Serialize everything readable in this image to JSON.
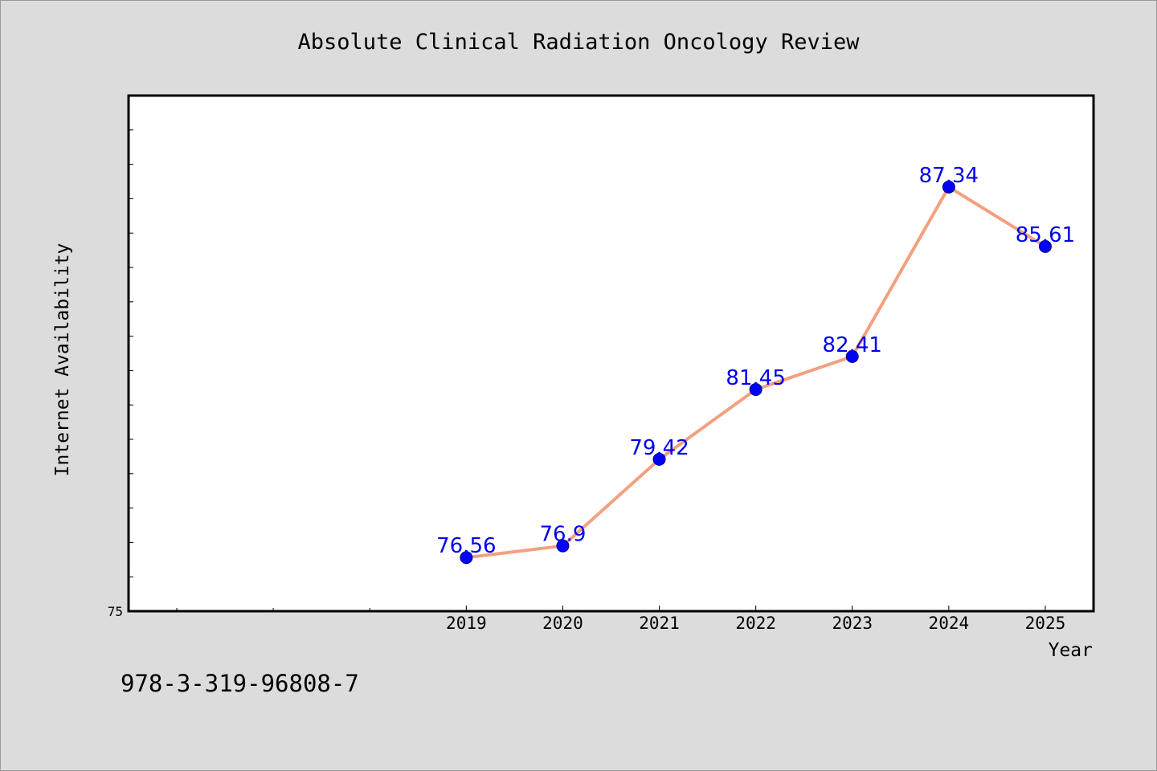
{
  "chart_data": {
    "type": "line",
    "title": "Absolute Clinical Radiation Oncology Review",
    "xlabel": "Year",
    "ylabel": "Internet Availability",
    "x": [
      "2019",
      "2020",
      "2021",
      "2022",
      "2023",
      "2024",
      "2025"
    ],
    "series": [
      {
        "values": [
          76.56,
          76.9,
          79.42,
          81.45,
          82.41,
          87.34,
          85.61
        ]
      }
    ],
    "data_labels": [
      "76.56",
      "76.9",
      "79.42",
      "81.45",
      "82.41",
      "87.34",
      "85.61"
    ],
    "x_domain": [
      2015.5,
      2025.5
    ],
    "ylim": [
      75,
      90
    ],
    "ytick_labels": [
      "75"
    ],
    "grid": false,
    "legend": "none",
    "line_color": "#f4a080",
    "marker_color": "#0000ff",
    "label_color": "#0000ee"
  },
  "footer": {
    "isbn": "978-3-319-96808-7"
  }
}
